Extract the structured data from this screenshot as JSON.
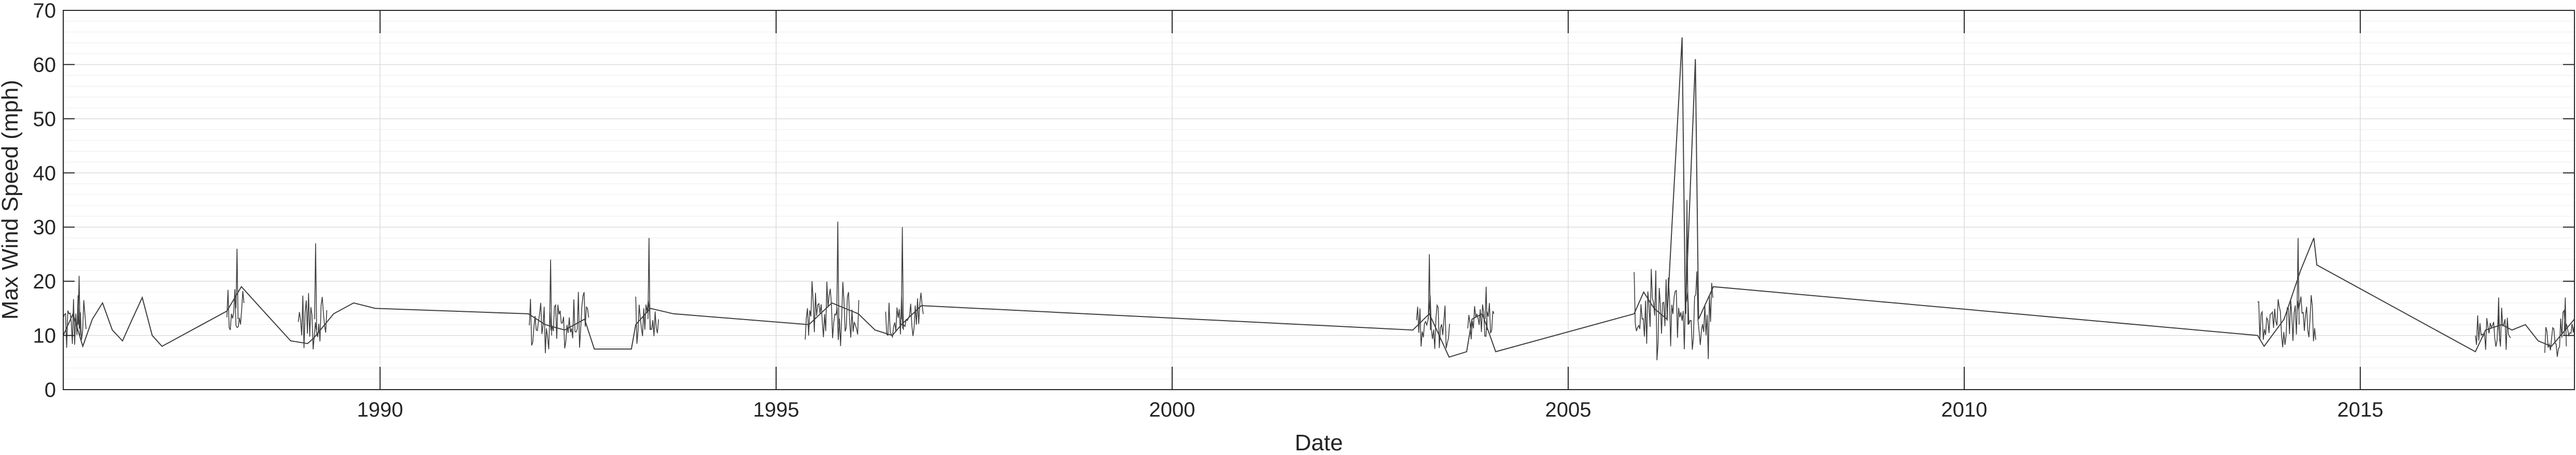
{
  "chart_data": {
    "type": "line",
    "title": "",
    "xlabel": "Date",
    "ylabel": "Max Wind Speed (mph)",
    "xlim": [
      "1986-01-01",
      "2017-09-15"
    ],
    "ylim": [
      0,
      70
    ],
    "x_ticks": [
      "1990",
      "1995",
      "2000",
      "2005",
      "2010",
      "2015"
    ],
    "y_ticks": [
      "0",
      "10",
      "20",
      "30",
      "40",
      "50",
      "60",
      "70"
    ],
    "grid": true,
    "minor_grid": true,
    "line_color": "#3f3f3f",
    "series": [
      {
        "points": [
          [
            "1986-01-01",
            10
          ],
          [
            "1986-02-15",
            14
          ],
          [
            "1986-04-01",
            8
          ],
          [
            "1986-05-15",
            13
          ],
          [
            "1986-07-01",
            16
          ],
          [
            "1986-08-15",
            11
          ],
          [
            "1986-10-01",
            9
          ],
          [
            "1986-11-15",
            13
          ],
          [
            "1986-12-31",
            17
          ],
          [
            "1987-02-15",
            10
          ],
          [
            "1987-04-01",
            8
          ],
          [
            "1988-01-25",
            14.5
          ],
          [
            "1988-04-01",
            19
          ],
          [
            "1988-07-01",
            15
          ],
          [
            "1988-11-15",
            9
          ],
          [
            "1989-02-01",
            8.5
          ],
          [
            "1989-03-01",
            9.5
          ],
          [
            "1989-06-01",
            14
          ],
          [
            "1989-09-01",
            16
          ],
          [
            "1989-12-10",
            15
          ],
          [
            "1991-11-15",
            14
          ],
          [
            "1992-02-01",
            12
          ],
          [
            "1992-05-01",
            11
          ],
          [
            "1992-08-01",
            13
          ],
          [
            "1992-09-15",
            7.5
          ],
          [
            "1993-03-05",
            7.5
          ],
          [
            "1993-03-25",
            12
          ],
          [
            "1993-06-01",
            15
          ],
          [
            "1993-09-15",
            14
          ],
          [
            "1995-06-01",
            12
          ],
          [
            "1995-09-15",
            16
          ],
          [
            "1996-01-15",
            14
          ],
          [
            "1996-04-01",
            11
          ],
          [
            "1996-06-20",
            10
          ],
          [
            "1996-08-01",
            12
          ],
          [
            "1996-11-01",
            15.5
          ],
          [
            "2003-01-15",
            11
          ],
          [
            "2003-04-01",
            14
          ],
          [
            "2003-07-01",
            6
          ],
          [
            "2003-09-20",
            7
          ],
          [
            "2003-10-15",
            13
          ],
          [
            "2003-12-01",
            14
          ],
          [
            "2004-02-01",
            7
          ],
          [
            "2005-11-01",
            14
          ],
          [
            "2005-12-15",
            18
          ],
          [
            "2006-02-01",
            15
          ],
          [
            "2006-04-01",
            13
          ],
          [
            "2006-06-10",
            65
          ],
          [
            "2006-06-25",
            14
          ],
          [
            "2006-08-10",
            61
          ],
          [
            "2006-08-25",
            13
          ],
          [
            "2006-11-01",
            19
          ],
          [
            "2013-09-15",
            10
          ],
          [
            "2013-10-15",
            8
          ],
          [
            "2014-01-15",
            13
          ],
          [
            "2014-04-01",
            22
          ],
          [
            "2014-06-01",
            28
          ],
          [
            "2014-06-15",
            23
          ],
          [
            "2016-06-15",
            7
          ],
          [
            "2016-08-01",
            11
          ],
          [
            "2016-10-15",
            12
          ],
          [
            "2016-12-01",
            11
          ],
          [
            "2017-02-01",
            12
          ],
          [
            "2017-04-01",
            9
          ],
          [
            "2017-06-01",
            8
          ],
          [
            "2017-09-15",
            13
          ]
        ]
      }
    ],
    "noise_segments": [
      {
        "start": "1986-01-01",
        "end": "1986-04-20",
        "center": 12,
        "amplitude": 7,
        "spike": 21
      },
      {
        "start": "1988-01-25",
        "end": "1988-04-15",
        "center": 15,
        "amplitude": 6,
        "spike": 26
      },
      {
        "start": "1988-12-20",
        "end": "1989-05-01",
        "center": 13,
        "amplitude": 7,
        "spike": 27
      },
      {
        "start": "1991-11-20",
        "end": "1992-08-25",
        "center": 12,
        "amplitude": 7,
        "spike": 24
      },
      {
        "start": "1993-03-25",
        "end": "1993-07-10",
        "center": 13,
        "amplitude": 6,
        "spike": 28
      },
      {
        "start": "1995-05-15",
        "end": "1996-01-20",
        "center": 14,
        "amplitude": 7,
        "spike": 31
      },
      {
        "start": "1996-05-20",
        "end": "1996-11-10",
        "center": 13,
        "amplitude": 6,
        "spike": 30
      },
      {
        "start": "2003-02-01",
        "end": "2003-07-05",
        "center": 13,
        "amplitude": 6,
        "spike": 25
      },
      {
        "start": "2003-09-25",
        "end": "2004-01-25",
        "center": 13,
        "amplitude": 5,
        "spike": 19
      },
      {
        "start": "2005-11-01",
        "end": "2006-10-31",
        "center": 14,
        "amplitude": 9,
        "spike": 35
      },
      {
        "start": "2013-09-15",
        "end": "2014-06-15",
        "center": 14,
        "amplitude": 7,
        "spike": 28
      },
      {
        "start": "2016-06-15",
        "end": "2016-11-30",
        "center": 11,
        "amplitude": 5,
        "spike": 17
      },
      {
        "start": "2017-05-01",
        "end": "2017-09-15",
        "center": 10,
        "amplitude": 5,
        "spike": 17
      }
    ]
  }
}
